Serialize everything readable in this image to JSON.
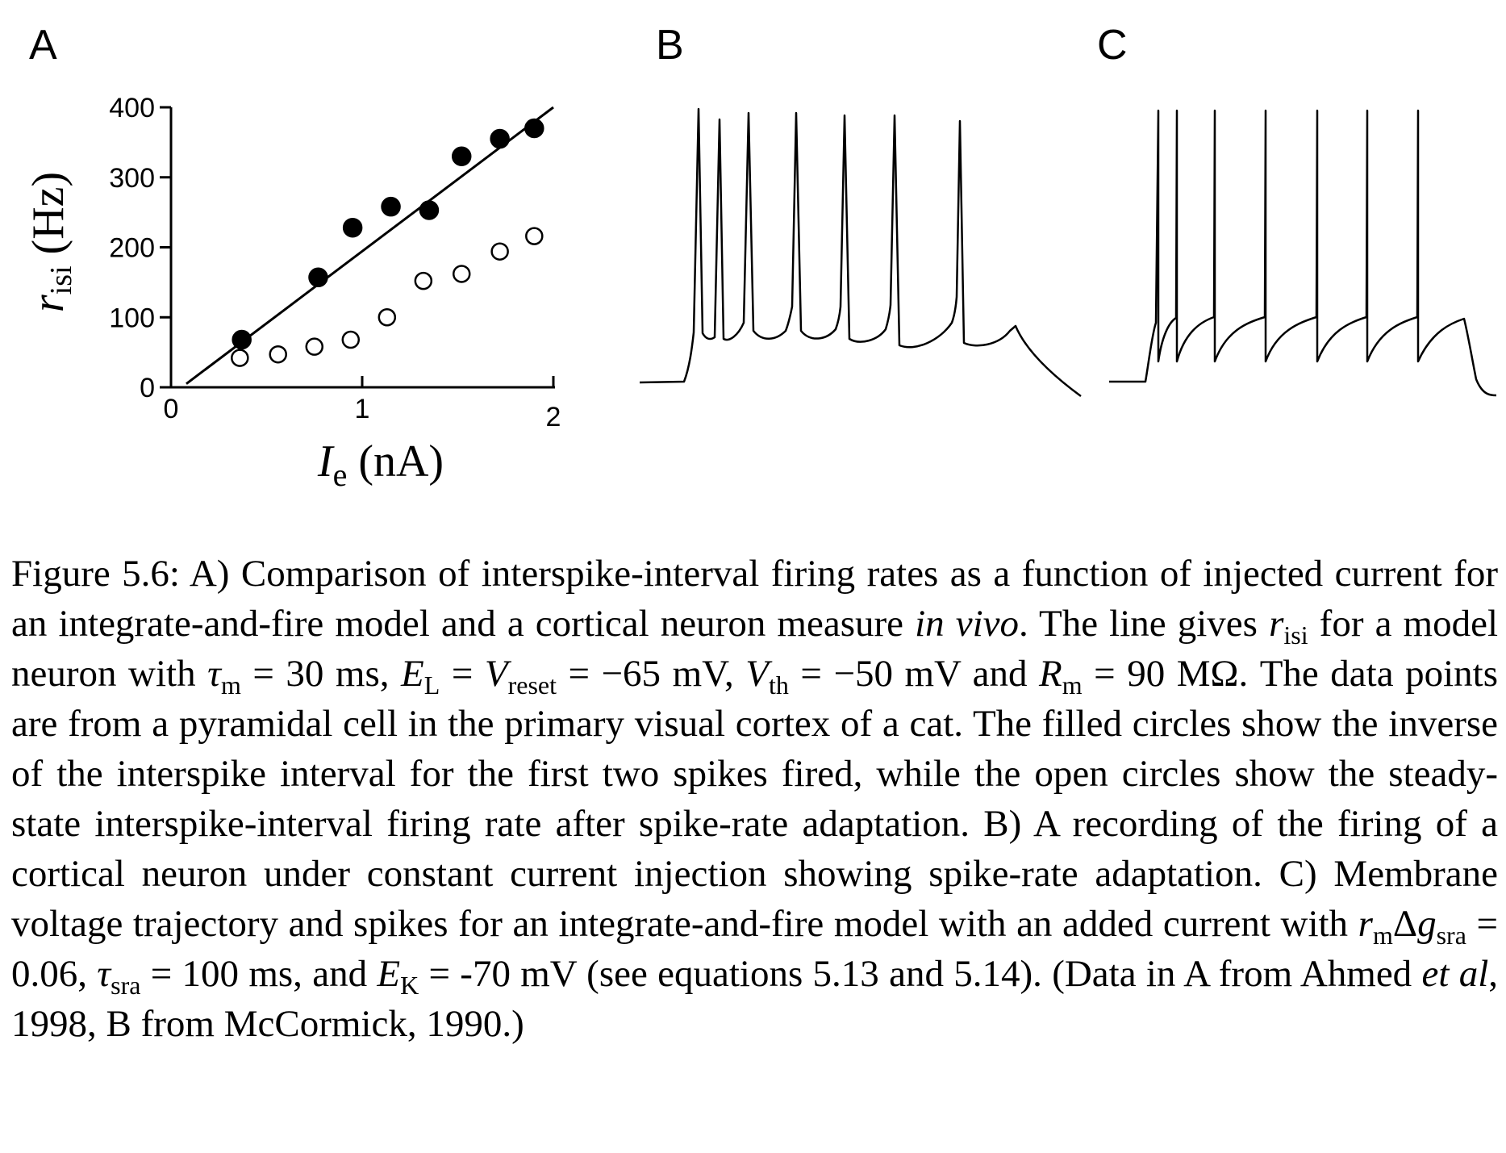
{
  "panel_labels": [
    "A",
    "B",
    "C"
  ],
  "chart_data": {
    "type": "scatter",
    "xlabel": {
      "main": "I",
      "sub": "e",
      "unit": "(nA)"
    },
    "ylabel": {
      "main": "r",
      "sub": "isi",
      "unit": "(Hz)"
    },
    "xlim": [
      0,
      2
    ],
    "ylim": [
      0,
      400
    ],
    "x_ticks": [
      "0",
      "1",
      "2"
    ],
    "y_ticks": [
      "0",
      "100",
      "200",
      "300",
      "400"
    ],
    "series": [
      {
        "marker": "filled-circle",
        "x": [
          0.37,
          0.77,
          0.95,
          1.15,
          1.35,
          1.52,
          1.72,
          1.9
        ],
        "y": [
          68,
          157,
          228,
          258,
          253,
          330,
          355,
          370
        ]
      },
      {
        "marker": "open-circle",
        "x": [
          0.36,
          0.56,
          0.75,
          0.94,
          1.13,
          1.32,
          1.52,
          1.72,
          1.9
        ],
        "y": [
          42,
          47,
          58,
          68,
          100,
          152,
          162,
          194,
          216
        ]
      }
    ],
    "fit_line": {
      "x": [
        0.08,
        2.0
      ],
      "y": [
        5,
        400
      ]
    }
  },
  "caption": {
    "figure_label": "Figure 5.6:",
    "text_html": "A) Comparison of interspike-interval firing rates as a function of injected current for an integrate-and-fire model and a cortical neuron measure <i>in vivo</i>. The line gives <i>r</i><sub>isi</sub> for a model neuron with <i>τ</i><sub>m</sub> = 30 ms, <i>E</i><sub>L</sub> = <i>V</i><sub>reset</sub> = −65 mV, <i>V</i><sub>th</sub> = −50 mV and <i>R</i><sub>m</sub> = 90 MΩ. The data points are from a pyramidal cell in the primary visual cortex of a cat. The filled circles show the inverse of the interspike interval for the first two spikes fired, while the open circles show the steady-state interspike-interval firing rate after spike-rate adaptation. B) A recording of the firing of a cortical neuron under constant current injection showing spike-rate adaptation. C) Membrane voltage trajectory and spikes for an integrate-and-fire model with an added current with <i>r</i><sub>m</sub>Δ<i>g</i><sub>sra</sub> = 0.06, <i>τ</i><sub>sra</sub> = 100 ms, and <i>E</i><sub>K</sub> = -70 mV (see equations 5.13 and 5.14). (Data in A from Ahmed <i>et al</i>, 1998, B from McCormick, 1990.)"
  }
}
